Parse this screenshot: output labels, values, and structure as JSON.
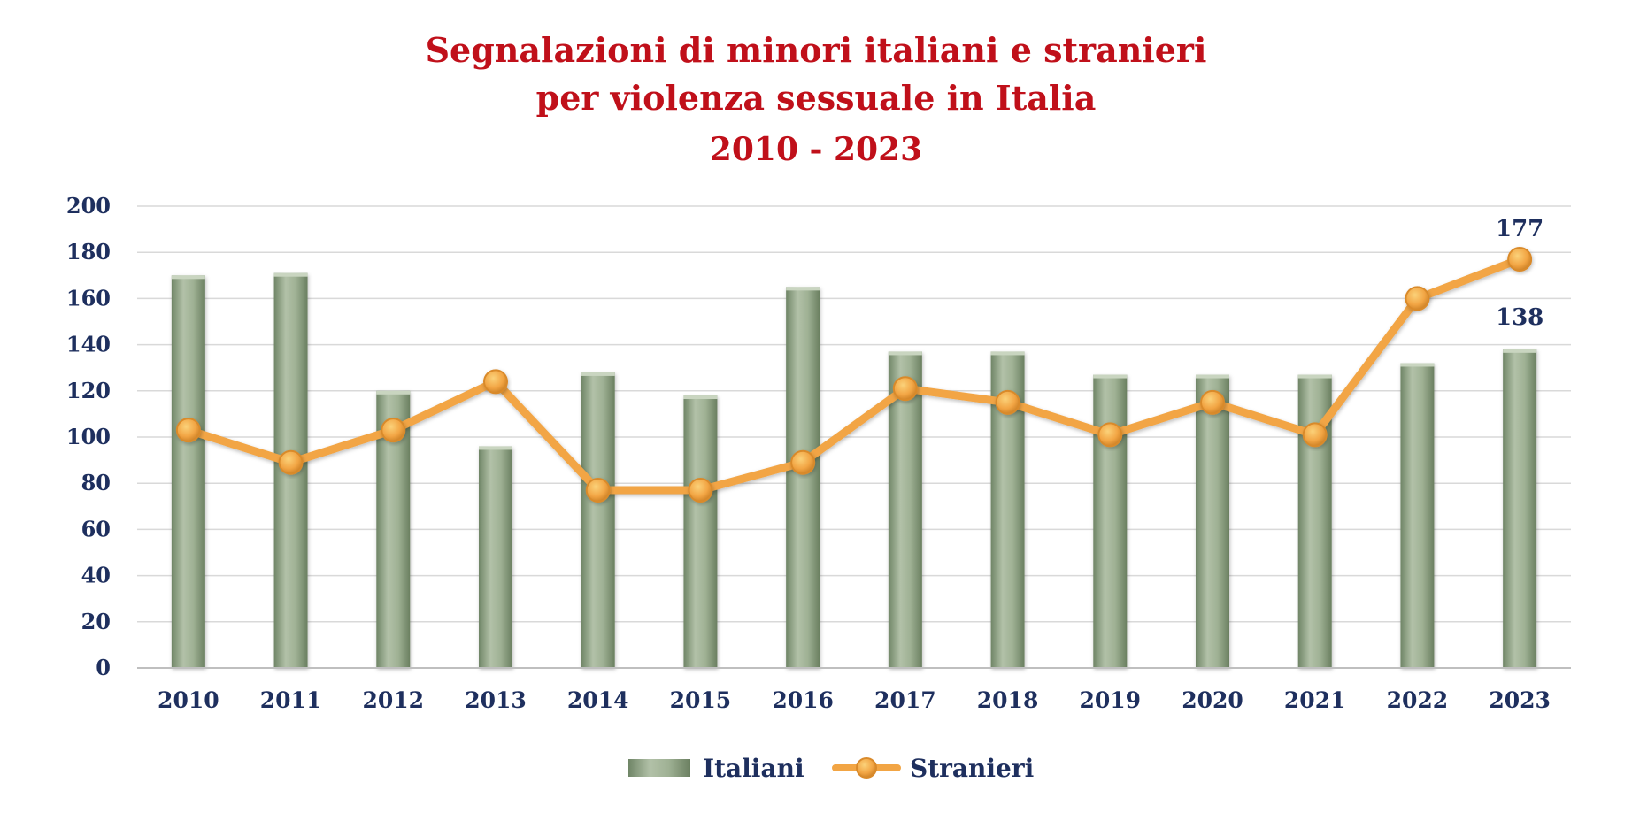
{
  "chart_data": {
    "type": "bar",
    "title": "Segnalazioni di minori italiani e stranieri",
    "title_line2": "per violenza sessuale in Italia",
    "subtitle": "2010 - 2023",
    "xlabel": "",
    "ylabel": "",
    "ylim": [
      0,
      200
    ],
    "yticks": [
      0,
      20,
      40,
      60,
      80,
      100,
      120,
      140,
      160,
      180,
      200
    ],
    "grid": true,
    "legend_position": "bottom",
    "categories": [
      "2010",
      "2011",
      "2012",
      "2013",
      "2014",
      "2015",
      "2016",
      "2017",
      "2018",
      "2019",
      "2020",
      "2021",
      "2022",
      "2023"
    ],
    "series": [
      {
        "name": "Italiani",
        "type": "bar",
        "color": "#95a98a",
        "values": [
          170,
          171,
          120,
          96,
          128,
          118,
          165,
          137,
          137,
          127,
          127,
          127,
          132,
          138
        ]
      },
      {
        "name": "Stranieri",
        "type": "line",
        "color": "#f2a544",
        "values": [
          103,
          89,
          103,
          124,
          77,
          77,
          89,
          121,
          115,
          101,
          115,
          101,
          160,
          177
        ]
      }
    ],
    "data_labels": [
      {
        "series": "Stranieri",
        "category": "2023",
        "text": "177"
      },
      {
        "series": "Italiani",
        "category": "2023",
        "text": "138"
      }
    ]
  },
  "colors": {
    "title": "#c0101a",
    "axis_text": "#1e2f5e",
    "grid": "#d9d9d9",
    "bar": "#95a98a",
    "line": "#f2a544"
  }
}
